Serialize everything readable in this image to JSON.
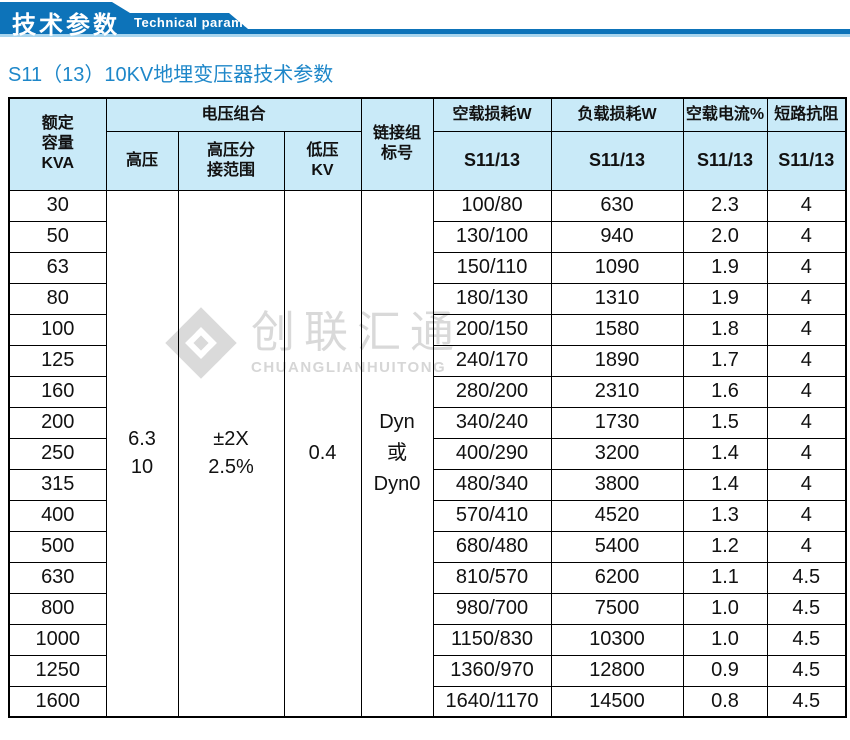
{
  "banner": {
    "title_cn": "技术参数",
    "title_en": "Technical parameter"
  },
  "page": {
    "subtitle": "S11（13）10KV地埋变压器技术参数"
  },
  "watermark": {
    "logo": "diamond-logo",
    "cn": "创联汇通",
    "en": "CHUANGLIANHUITONG"
  },
  "colors": {
    "banner_blue": "#0d73b9",
    "banner_light_strip": "#a9d5ee",
    "table_header_bg": "#c9eaf8",
    "subtitle_blue": "#1e87c9",
    "border_black": "#000000",
    "watermark_gray": "#d9d9d9"
  },
  "table": {
    "headers": {
      "capacity": "额定\n容量\nKVA",
      "voltage_combo": "电压组合",
      "hv": "高压",
      "hv_tap": "高压分\n接范围",
      "lv": "低压\nKV",
      "vector_group": "链接组\n标号",
      "no_load_loss": "空载损耗W",
      "load_loss": "负载损耗W",
      "no_load_current": "空载电流%",
      "impedance": "短路抗阻",
      "model_no_load_loss": "S11/13",
      "model_load_loss": "S11/13",
      "model_no_load_current": "S11/13",
      "model_impedance": "S11/13"
    },
    "merged": {
      "hv": "6.3\n10",
      "hv_tap": "±2X\n2.5%",
      "lv": "0.4",
      "vector_group": "Dyn\n或\nDyn0"
    },
    "rows": [
      {
        "kva": "30",
        "no_load_loss": "100/80",
        "load_loss": "630",
        "no_load_current": "2.3",
        "impedance": "4"
      },
      {
        "kva": "50",
        "no_load_loss": "130/100",
        "load_loss": "940",
        "no_load_current": "2.0",
        "impedance": "4"
      },
      {
        "kva": "63",
        "no_load_loss": "150/110",
        "load_loss": "1090",
        "no_load_current": "1.9",
        "impedance": "4"
      },
      {
        "kva": "80",
        "no_load_loss": "180/130",
        "load_loss": "1310",
        "no_load_current": "1.9",
        "impedance": "4"
      },
      {
        "kva": "100",
        "no_load_loss": "200/150",
        "load_loss": "1580",
        "no_load_current": "1.8",
        "impedance": "4"
      },
      {
        "kva": "125",
        "no_load_loss": "240/170",
        "load_loss": "1890",
        "no_load_current": "1.7",
        "impedance": "4"
      },
      {
        "kva": "160",
        "no_load_loss": "280/200",
        "load_loss": "2310",
        "no_load_current": "1.6",
        "impedance": "4"
      },
      {
        "kva": "200",
        "no_load_loss": "340/240",
        "load_loss": "1730",
        "no_load_current": "1.5",
        "impedance": "4"
      },
      {
        "kva": "250",
        "no_load_loss": "400/290",
        "load_loss": "3200",
        "no_load_current": "1.4",
        "impedance": "4"
      },
      {
        "kva": "315",
        "no_load_loss": "480/340",
        "load_loss": "3800",
        "no_load_current": "1.4",
        "impedance": "4"
      },
      {
        "kva": "400",
        "no_load_loss": "570/410",
        "load_loss": "4520",
        "no_load_current": "1.3",
        "impedance": "4"
      },
      {
        "kva": "500",
        "no_load_loss": "680/480",
        "load_loss": "5400",
        "no_load_current": "1.2",
        "impedance": "4"
      },
      {
        "kva": "630",
        "no_load_loss": "810/570",
        "load_loss": "6200",
        "no_load_current": "1.1",
        "impedance": "4.5"
      },
      {
        "kva": "800",
        "no_load_loss": "980/700",
        "load_loss": "7500",
        "no_load_current": "1.0",
        "impedance": "4.5"
      },
      {
        "kva": "1000",
        "no_load_loss": "1150/830",
        "load_loss": "10300",
        "no_load_current": "1.0",
        "impedance": "4.5"
      },
      {
        "kva": "1250",
        "no_load_loss": "1360/970",
        "load_loss": "12800",
        "no_load_current": "0.9",
        "impedance": "4.5"
      },
      {
        "kva": "1600",
        "no_load_loss": "1640/1170",
        "load_loss": "14500",
        "no_load_current": "0.8",
        "impedance": "4.5"
      }
    ]
  }
}
